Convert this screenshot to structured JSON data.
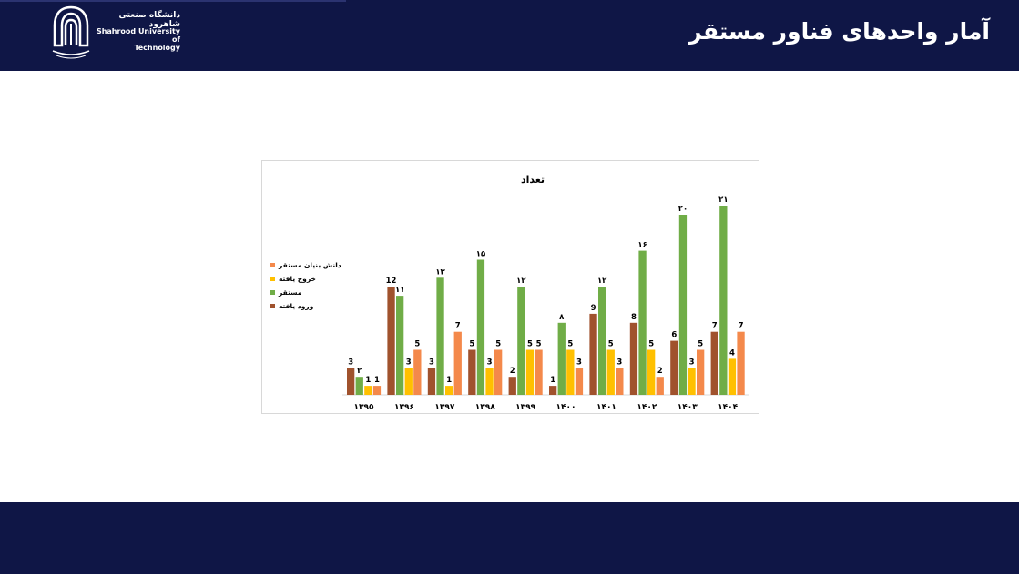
{
  "header": {
    "university_fa": "دانشگاه صنعتی شاهرود",
    "university_en_line1": "Shahrood University of",
    "university_en_line2": "Technology",
    "page_title": "آمار واحدهای فناور مستقر"
  },
  "chart_data": {
    "type": "bar",
    "title": "تعداد",
    "xlabel": "",
    "ylabel": "",
    "ylim": [
      0,
      22
    ],
    "grid": false,
    "legend_position": "left",
    "categories": [
      "۱۳۹۵",
      "۱۳۹۶",
      "۱۳۹۷",
      "۱۳۹۸",
      "۱۳۹۹",
      "۱۴۰۰",
      "۱۴۰۱",
      "۱۴۰۲",
      "۱۴۰۳",
      "۱۴۰۴"
    ],
    "series": [
      {
        "name": "ورود یافته",
        "color": "#a0522d",
        "values": [
          3,
          12,
          3,
          5,
          2,
          1,
          9,
          8,
          6,
          7
        ],
        "labels": [
          "3",
          "12",
          "3",
          "5",
          "2",
          "1",
          "9",
          "8",
          "6",
          "7"
        ]
      },
      {
        "name": "مستقر",
        "color": "#70ad47",
        "values": [
          2,
          11,
          13,
          15,
          12,
          8,
          12,
          16,
          20,
          21
        ],
        "labels": [
          "۲",
          "۱۱",
          "۱۳",
          "۱۵",
          "۱۲",
          "۸",
          "۱۲",
          "۱۶",
          "۲۰",
          "۲۱"
        ]
      },
      {
        "name": "خروج یافته",
        "color": "#ffc000",
        "values": [
          1,
          3,
          1,
          3,
          5,
          5,
          5,
          5,
          3,
          4
        ],
        "labels": [
          "1",
          "3",
          "1",
          "3",
          "5",
          "5",
          "5",
          "5",
          "3",
          "4"
        ]
      },
      {
        "name": "دانش بنیان مستقر",
        "color": "#f4894b",
        "values": [
          1,
          5,
          7,
          5,
          5,
          3,
          3,
          2,
          5,
          7
        ],
        "labels": [
          "1",
          "5",
          "7",
          "5",
          "5",
          "3",
          "3",
          "2",
          "5",
          "7"
        ]
      }
    ],
    "legend_order": [
      3,
      2,
      1,
      0
    ]
  }
}
